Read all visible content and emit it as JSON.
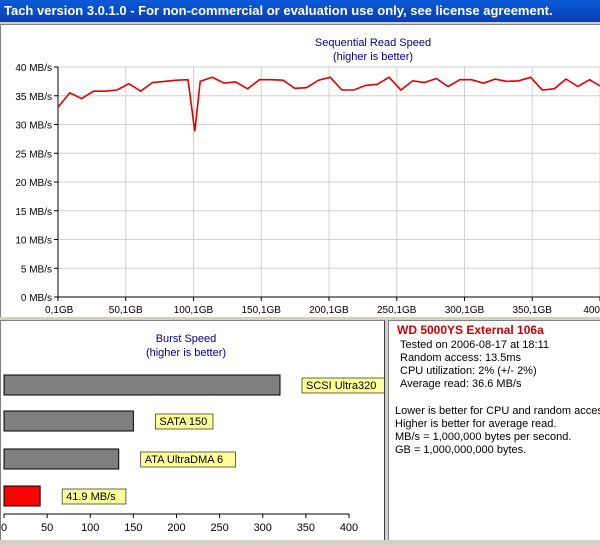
{
  "window": {
    "title": "Tach version 3.0.1.0  - For non-commercial or evaluation use only, see license agreement."
  },
  "chart_data": [
    {
      "type": "line",
      "title": "Sequential Read Speed",
      "subtitle": "(higher is better)",
      "y_tick_labels": [
        "0 MB/s",
        "5 MB/s",
        "10 MB/s",
        "15 MB/s",
        "20 MB/s",
        "25 MB/s",
        "30 MB/s",
        "35 MB/s",
        "40 MB/s"
      ],
      "x_tick_labels": [
        "0,1GB",
        "50,1GB",
        "100,1GB",
        "150,1GB",
        "200,1GB",
        "250,1GB",
        "300,1GB",
        "350,1GB",
        "400"
      ],
      "xlim": [
        0.1,
        400
      ],
      "ylim": [
        0,
        40
      ],
      "grid": true,
      "color": "#e00000",
      "series": [
        {
          "x": [
            0.1,
            8.8,
            17.5,
            26.3,
            35,
            43.7,
            52.4,
            61.1,
            69.8,
            78.5,
            87.2,
            96,
            101,
            105,
            113.9,
            122.6,
            131.3,
            140,
            148.7,
            157.4,
            166.1,
            174.8,
            183.5,
            192.2,
            200.9,
            209.6,
            218.3,
            227,
            235.7,
            244.4,
            253.1,
            261.8,
            270.5,
            279.2,
            287.9,
            296.6,
            305.3,
            314,
            322.7,
            331.4,
            340.1,
            348.8,
            357.5,
            366.2,
            374.9,
            383.6,
            392.3,
            400
          ],
          "y": [
            33,
            35.5,
            34.5,
            35.8,
            35.8,
            36,
            37.1,
            35.8,
            37.3,
            37.5,
            37.7,
            37.8,
            28.8,
            37.5,
            38.2,
            37.2,
            37.4,
            36.2,
            37.8,
            37.8,
            37.7,
            36.3,
            36.4,
            37.7,
            38.2,
            36,
            36,
            36.8,
            37,
            38.2,
            36,
            37.6,
            37.3,
            38,
            36.6,
            37.8,
            37.8,
            37.2,
            37.9,
            37.5,
            37.6,
            38.2,
            36,
            36.2,
            37.9,
            36.6,
            37.8,
            36.7
          ]
        }
      ]
    },
    {
      "type": "bar",
      "orientation": "horizontal",
      "title": "Burst Speed",
      "subtitle": "(higher is better)",
      "x_tick_labels": [
        "0",
        "50",
        "100",
        "150",
        "200",
        "250",
        "300",
        "350",
        "400"
      ],
      "xlim": [
        0,
        400
      ],
      "categories": [
        "SCSI Ultra320",
        "SATA 150",
        "ATA UltraDMA 6",
        "41.9 MB/s"
      ],
      "values": [
        320,
        150,
        133,
        41.9
      ],
      "colors": [
        "#808080",
        "#808080",
        "#808080",
        "#ff0000"
      ]
    }
  ],
  "info": {
    "drive_name": "WD 5000YS External 106a",
    "tested_on": "Tested on 2006-08-17 at 18:11",
    "random_access": "Random access: 13.5ms",
    "cpu_utilization": "CPU utilization: 2% (+/- 2%)",
    "average_read": "Average read: 36.6 MB/s",
    "note_1": "Lower is better for CPU and random access.",
    "note_2": "Higher is better for average read.",
    "note_3": "MB/s = 1,000,000 bytes per second.",
    "note_4": "GB = 1,000,000,000 bytes."
  }
}
